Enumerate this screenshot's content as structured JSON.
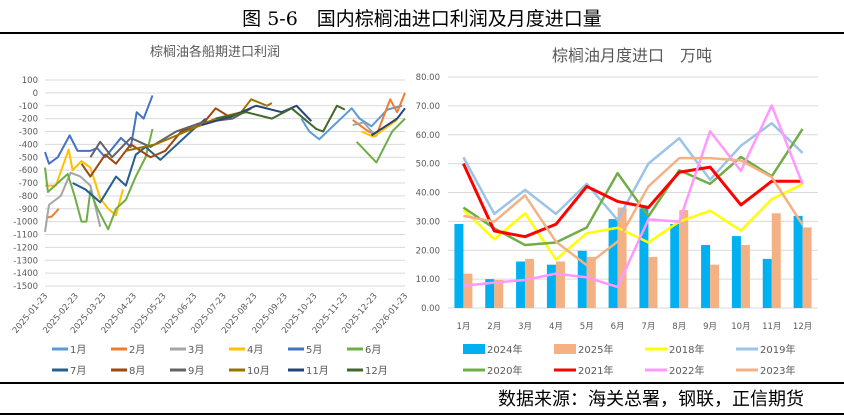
{
  "figure_title": "图 5-6　国内棕榈油进口利润及月度进口量",
  "source": "数据来源：海关总署，钢联，正信期货",
  "chart_data": [
    {
      "type": "line",
      "title": "棕榈油各船期进口利润",
      "ylim": [
        -1500,
        100
      ],
      "yticks": [
        100,
        0,
        -100,
        -200,
        -300,
        -400,
        -500,
        -600,
        -700,
        -800,
        -900,
        -1000,
        -1100,
        -1200,
        -1300,
        -1400,
        -1500
      ],
      "xticks": [
        "2025-01-23",
        "2025-02-23",
        "2025-03-23",
        "2025-04-23",
        "2025-05-23",
        "2025-06-23",
        "2025-07-23",
        "2025-08-23",
        "2025-09-23",
        "2025-10-23",
        "2025-11-23",
        "2025-12-23",
        "2026-01-23"
      ],
      "grid": true,
      "legend": "bottom",
      "series": [
        {
          "name": "1月",
          "color": "#5B9BD5",
          "points": [
            [
              "2025-10-10",
              -200
            ],
            [
              "2025-10-18",
              -300
            ],
            [
              "2025-10-28",
              -360
            ],
            [
              "2025-11-30",
              -120
            ],
            [
              "2025-12-08",
              -200
            ],
            [
              "2025-12-20",
              -260
            ],
            [
              "2026-01-05",
              -130
            ],
            [
              "2026-01-20",
              -100
            ]
          ]
        },
        {
          "name": "2月",
          "color": "#ED7D31",
          "points": [
            [
              "2025-01-24",
              -970
            ],
            [
              "2025-01-30",
              -960
            ],
            [
              "2025-02-06",
              -900
            ],
            [
              "2025-12-01",
              -210
            ],
            [
              "2025-12-15",
              -290
            ],
            [
              "2025-12-25",
              -330
            ],
            [
              "2026-01-08",
              -50
            ],
            [
              "2026-01-15",
              -150
            ],
            [
              "2026-01-23",
              0
            ]
          ]
        },
        {
          "name": "3月",
          "color": "#A5A5A5",
          "points": [
            [
              "2025-01-23",
              -1080
            ],
            [
              "2025-01-27",
              -870
            ],
            [
              "2025-02-08",
              -800
            ],
            [
              "2025-02-18",
              -620
            ],
            [
              "2025-02-28",
              -650
            ],
            [
              "2025-03-10",
              -720
            ],
            [
              "2025-03-20",
              -1040
            ],
            [
              "2025-12-01",
              -250
            ],
            [
              "2025-12-12",
              -230
            ],
            [
              "2025-12-25",
              -340
            ]
          ]
        },
        {
          "name": "4月",
          "color": "#FFC000",
          "points": [
            [
              "2025-01-23",
              -720
            ],
            [
              "2025-02-03",
              -720
            ],
            [
              "2025-02-16",
              -440
            ],
            [
              "2025-02-20",
              -600
            ],
            [
              "2025-03-01",
              -530
            ],
            [
              "2025-03-10",
              -580
            ],
            [
              "2025-03-20",
              -820
            ],
            [
              "2025-03-28",
              -900
            ],
            [
              "2025-04-05",
              -950
            ],
            [
              "2025-04-12",
              -750
            ],
            [
              "2025-12-10",
              -300
            ],
            [
              "2025-12-22",
              -340
            ],
            [
              "2026-01-15",
              -210
            ]
          ]
        },
        {
          "name": "5月",
          "color": "#4472C4",
          "points": [
            [
              "2025-01-23",
              -460
            ],
            [
              "2025-01-27",
              -550
            ],
            [
              "2025-02-05",
              -500
            ],
            [
              "2025-02-17",
              -330
            ],
            [
              "2025-02-25",
              -450
            ],
            [
              "2025-03-10",
              -450
            ],
            [
              "2025-03-17",
              -430
            ],
            [
              "2025-03-25",
              -500
            ],
            [
              "2025-04-10",
              -350
            ],
            [
              "2025-04-20",
              -420
            ],
            [
              "2025-04-26",
              -150
            ],
            [
              "2025-05-03",
              -200
            ],
            [
              "2025-05-12",
              -20
            ]
          ]
        },
        {
          "name": "6月",
          "color": "#70AD47",
          "points": [
            [
              "2025-01-23",
              -580
            ],
            [
              "2025-01-26",
              -770
            ],
            [
              "2025-02-15",
              -630
            ],
            [
              "2025-02-22",
              -800
            ],
            [
              "2025-03-01",
              -1000
            ],
            [
              "2025-03-06",
              -1000
            ],
            [
              "2025-03-10",
              -760
            ],
            [
              "2025-03-16",
              -880
            ],
            [
              "2025-03-28",
              -1060
            ],
            [
              "2025-04-05",
              -900
            ],
            [
              "2025-04-15",
              -830
            ],
            [
              "2025-04-25",
              -650
            ],
            [
              "2025-05-05",
              -500
            ],
            [
              "2025-05-12",
              -280
            ],
            [
              "2025-12-05",
              -380
            ],
            [
              "2025-12-25",
              -540
            ],
            [
              "2026-01-10",
              -300
            ],
            [
              "2026-01-23",
              -200
            ]
          ]
        },
        {
          "name": "7月",
          "color": "#255E91",
          "points": [
            [
              "2025-02-20",
              -700
            ],
            [
              "2025-03-05",
              -750
            ],
            [
              "2025-03-20",
              -850
            ],
            [
              "2025-04-05",
              -650
            ],
            [
              "2025-04-15",
              -720
            ],
            [
              "2025-04-25",
              -480
            ],
            [
              "2025-05-05",
              -420
            ],
            [
              "2025-05-20",
              -520
            ],
            [
              "2025-06-20",
              -300
            ],
            [
              "2025-07-05",
              -200
            ]
          ]
        },
        {
          "name": "8月",
          "color": "#9E480E",
          "points": [
            [
              "2025-03-01",
              -550
            ],
            [
              "2025-03-10",
              -650
            ],
            [
              "2025-03-25",
              -480
            ],
            [
              "2025-04-05",
              -550
            ],
            [
              "2025-04-20",
              -400
            ],
            [
              "2025-05-10",
              -500
            ],
            [
              "2025-05-25",
              -450
            ],
            [
              "2025-06-10",
              -300
            ],
            [
              "2025-07-01",
              -250
            ],
            [
              "2025-07-15",
              -120
            ],
            [
              "2025-08-01",
              -200
            ]
          ]
        },
        {
          "name": "9月",
          "color": "#636363",
          "points": [
            [
              "2025-03-10",
              -500
            ],
            [
              "2025-03-20",
              -380
            ],
            [
              "2025-04-01",
              -500
            ],
            [
              "2025-04-20",
              -350
            ],
            [
              "2025-05-10",
              -420
            ],
            [
              "2025-06-05",
              -300
            ],
            [
              "2025-07-01",
              -230
            ],
            [
              "2025-08-01",
              -200
            ],
            [
              "2025-08-20",
              -120
            ]
          ]
        },
        {
          "name": "10月",
          "color": "#997300",
          "points": [
            [
              "2025-04-15",
              -450
            ],
            [
              "2025-05-15",
              -400
            ],
            [
              "2025-06-15",
              -300
            ],
            [
              "2025-07-15",
              -200
            ],
            [
              "2025-08-10",
              -150
            ],
            [
              "2025-08-20",
              -50
            ],
            [
              "2025-09-05",
              -100
            ],
            [
              "2025-09-10",
              -80
            ]
          ]
        },
        {
          "name": "11月",
          "color": "#264478",
          "points": [
            [
              "2025-05-20",
              -400
            ],
            [
              "2025-07-01",
              -250
            ],
            [
              "2025-08-01",
              -180
            ],
            [
              "2025-08-25",
              -100
            ],
            [
              "2025-09-20",
              -150
            ],
            [
              "2025-10-05",
              -100
            ],
            [
              "2025-10-20",
              -220
            ],
            [
              "2025-12-20",
              -330
            ],
            [
              "2026-01-15",
              -200
            ],
            [
              "2026-01-23",
              -120
            ]
          ]
        },
        {
          "name": "12月",
          "color": "#43682B",
          "points": [
            [
              "2025-06-01",
              -300
            ],
            [
              "2025-07-15",
              -200
            ],
            [
              "2025-08-15",
              -150
            ],
            [
              "2025-09-10",
              -200
            ],
            [
              "2025-09-30",
              -120
            ],
            [
              "2025-10-25",
              -280
            ],
            [
              "2025-11-01",
              -300
            ],
            [
              "2025-11-15",
              -100
            ],
            [
              "2025-11-23",
              -130
            ]
          ]
        }
      ]
    },
    {
      "type": "bar+line",
      "title": "棕榈油月度进口　万吨",
      "ylim": [
        0,
        80
      ],
      "yticks": [
        "0.00",
        "10.00",
        "20.00",
        "30.00",
        "40.00",
        "50.00",
        "60.00",
        "70.00",
        "80.00"
      ],
      "categories": [
        "1月",
        "2月",
        "3月",
        "4月",
        "5月",
        "6月",
        "7月",
        "8月",
        "9月",
        "10月",
        "11月",
        "12月"
      ],
      "grid": true,
      "legend": "bottom",
      "bars": [
        {
          "name": "2024年",
          "color": "#00B0F0",
          "values": [
            29.1,
            10,
            16.1,
            15,
            19.8,
            30.8,
            34.5,
            29.1,
            21.8,
            24.9,
            17,
            31.9
          ]
        },
        {
          "name": "2025年",
          "color": "#F4B183",
          "values": [
            11.9,
            9.7,
            17,
            16.1,
            17.7,
            34.8,
            17.7,
            33.9,
            15,
            21.8,
            32.8,
            27.9
          ]
        }
      ],
      "lines": [
        {
          "name": "2018年",
          "color": "#FFFF00",
          "values": [
            34,
            23.8,
            32.8,
            16.8,
            25.9,
            27.8,
            22.7,
            29.9,
            33.7,
            26.8,
            37.7,
            42.9
          ]
        },
        {
          "name": "2019年",
          "color": "#9DC3E6",
          "values": [
            52.2,
            32.6,
            40.9,
            32.6,
            43,
            30.5,
            50,
            58.8,
            44.4,
            56.2,
            64,
            53.7
          ]
        },
        {
          "name": "2020年",
          "color": "#70AD47",
          "values": [
            34.8,
            27.6,
            21.8,
            22.7,
            27.9,
            46.7,
            31.7,
            47.7,
            43,
            52.3,
            45.6,
            62
          ]
        },
        {
          "name": "2021年",
          "color": "#FF0000",
          "values": [
            50,
            26.7,
            24.7,
            29,
            42.1,
            36.9,
            34.8,
            47,
            48.8,
            35.7,
            43.9,
            43.9
          ]
        },
        {
          "name": "2022年",
          "color": "#FF99FF",
          "values": [
            7.7,
            8.8,
            9.7,
            11.9,
            10.6,
            7.3,
            30.7,
            29.9,
            61.2,
            47.5,
            70.1,
            42.9
          ]
        },
        {
          "name": "2023年",
          "color": "#F4B183",
          "values": [
            31.9,
            29.9,
            39,
            23,
            14.8,
            23,
            42.1,
            51.9,
            51.9,
            51.1,
            45.3,
            28.8
          ]
        }
      ]
    }
  ]
}
